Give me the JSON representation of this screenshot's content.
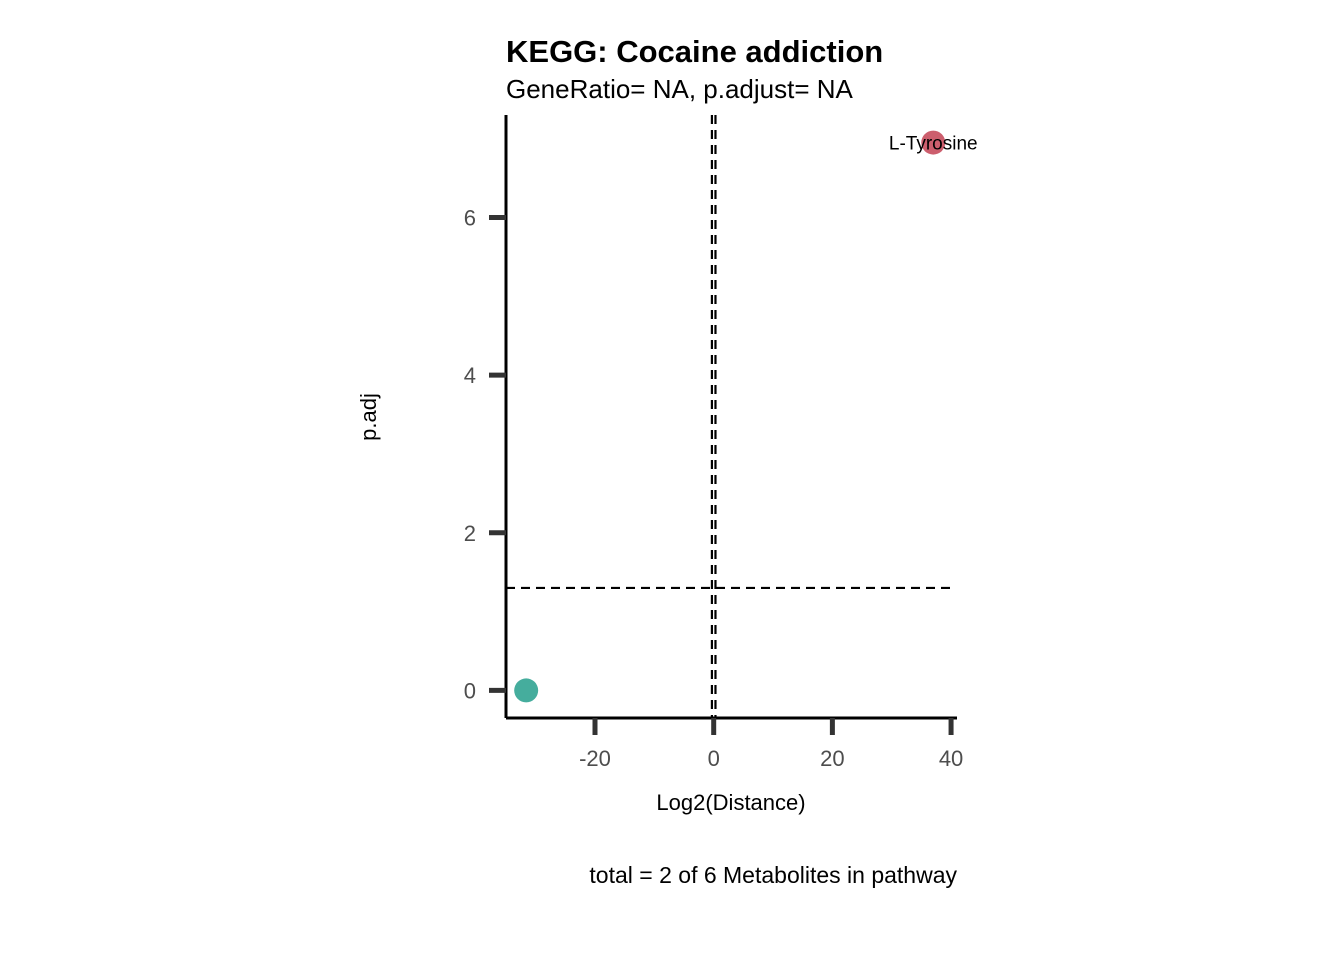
{
  "chart_data": {
    "type": "scatter",
    "title": "KEGG: Cocaine addiction",
    "subtitle": "GeneRatio= NA, p.adjust= NA",
    "xlabel": "Log2(Distance)",
    "ylabel": "p.adj",
    "caption": "total = 2 of 6 Metabolites in pathway",
    "xlim": [
      -35,
      41
    ],
    "ylim": [
      -0.35,
      7.3
    ],
    "xticks": [
      -20,
      0,
      20,
      40
    ],
    "yticks": [
      0,
      2,
      4,
      6
    ],
    "xtick_labels": [
      "-20",
      "0",
      "20",
      "40"
    ],
    "ytick_labels": [
      "0",
      "2",
      "4",
      "6"
    ],
    "vlines": [
      -0.3,
      0.3
    ],
    "hline": 1.3,
    "points": [
      {
        "x": -31.6,
        "y": 0.0,
        "label": "",
        "color": "#45ad9d"
      },
      {
        "x": 37.0,
        "y": 6.95,
        "label": "L-Tyrosine",
        "color": "#cc5e6d"
      }
    ],
    "grid": false,
    "legend": "none"
  }
}
